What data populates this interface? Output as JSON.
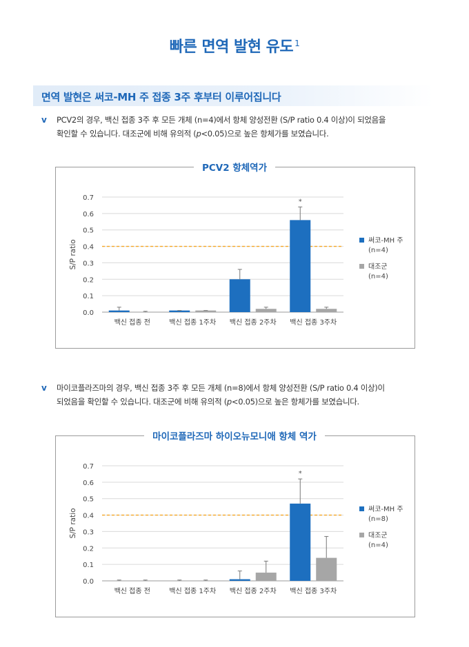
{
  "header": {
    "title": "빠른 면역 발현 유도",
    "title_sup": "1"
  },
  "section": {
    "title": "면역 발현은 써코-MH 주 접종 3주 후부터 이루어집니다"
  },
  "bullets": [
    {
      "mark": "v",
      "line1_a": "PCV2의 경우, 백신 접종 3주 후 모든 개체 (n=4)에서 항체 양성전환 (S/P ratio 0.4 이상)이 되었음을",
      "line2_a": "확인할 수 있습니다. 대조군에 비해 유의적 (",
      "line2_p": "p",
      "line2_b": "<0.05)으로 높은 항체가를 보였습니다."
    },
    {
      "mark": "v",
      "line1_a": "마이코플라즈마의 경우, 백신 접종 3주 후 모든 개체 (n=8)에서 항체 양성전환 (S/P ratio 0.4 이상)이",
      "line2_a": "되었음을 확인할 수 있습니다. 대조군에 비해 유의적 (",
      "line2_p": "p",
      "line2_b": "<0.05)으로 높은 항체가를 보였습니다."
    }
  ],
  "colors": {
    "accent": "#1f68b8",
    "vaccine_bar": "#1d6fbf",
    "control_bar": "#a6a6a6",
    "threshold": "#f5a623"
  },
  "chart_data": [
    {
      "type": "bar",
      "title": "PCV2 항체역가",
      "ylabel": "S/P ratio",
      "ylim": [
        0,
        0.7
      ],
      "yticks": [
        "0.0",
        "0.1",
        "0.2",
        "0.3",
        "0.4",
        "0.5",
        "0.6",
        "0.7"
      ],
      "threshold": 0.4,
      "categories": [
        "백신 접종 전",
        "백신 접종 1주차",
        "백신 접종 2주차",
        "백신 접종 3주차"
      ],
      "series": [
        {
          "name": "써코-MH 주",
          "n_label": "(n=4)",
          "values": [
            0.01,
            0.01,
            0.2,
            0.56
          ],
          "errors": [
            0.02,
            0.0,
            0.06,
            0.08
          ]
        },
        {
          "name": "대조군",
          "n_label": "(n=4)",
          "values": [
            0.0,
            0.01,
            0.02,
            0.02
          ],
          "errors": [
            0.005,
            0.0,
            0.01,
            0.01
          ]
        }
      ],
      "significance": [
        {
          "category": 3,
          "series": 0,
          "mark": "*"
        }
      ],
      "grid": true,
      "legend": "right"
    },
    {
      "type": "bar",
      "title": "마이코플라즈마 하이오뉴모니애 항체 역가",
      "ylabel": "S/P ratio",
      "ylim": [
        0,
        0.7
      ],
      "yticks": [
        "0.0",
        "0.1",
        "0.2",
        "0.3",
        "0.4",
        "0.5",
        "0.6",
        "0.7"
      ],
      "threshold": 0.4,
      "categories": [
        "백신 접종 전",
        "백신 접종 1주차",
        "백신 접종 2주차",
        "백신 접종 3주차"
      ],
      "series": [
        {
          "name": "써코-MH 주",
          "n_label": "(n=8)",
          "values": [
            0.0,
            0.0,
            0.01,
            0.47
          ],
          "errors": [
            0.005,
            0.005,
            0.05,
            0.15
          ]
        },
        {
          "name": "대조군",
          "n_label": "(n=4)",
          "values": [
            0.0,
            0.0,
            0.05,
            0.14
          ],
          "errors": [
            0.005,
            0.005,
            0.07,
            0.13
          ]
        }
      ],
      "significance": [
        {
          "category": 3,
          "series": 0,
          "mark": "*"
        }
      ],
      "grid": true,
      "legend": "right"
    }
  ]
}
